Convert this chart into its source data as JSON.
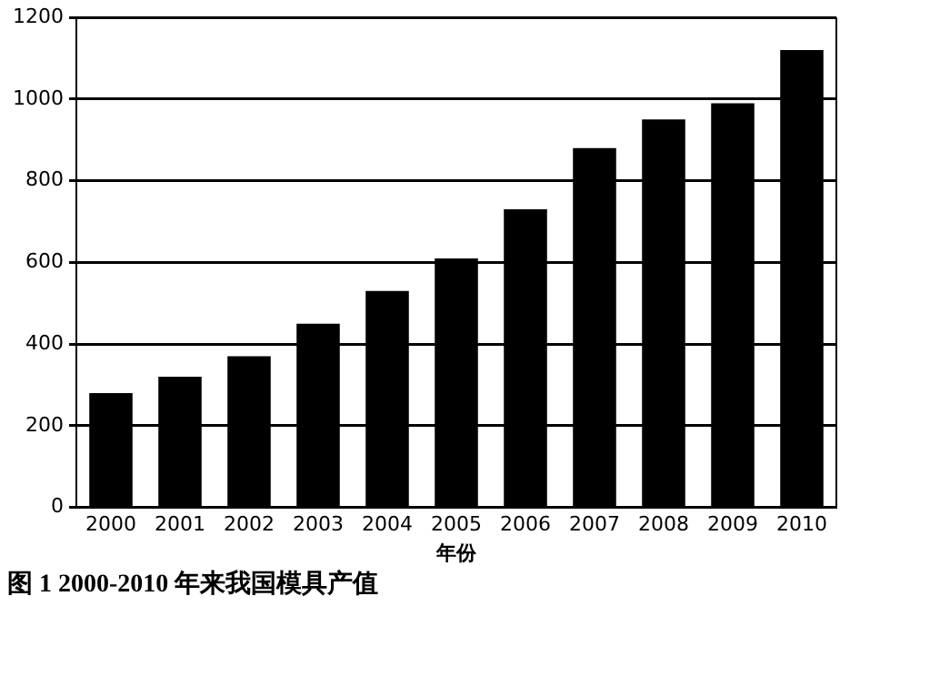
{
  "chart_data": {
    "type": "bar",
    "title": "图 1 2000-2010 年来我国模具产值",
    "xlabel": "年份",
    "categories": [
      "2000",
      "2001",
      "2002",
      "2003",
      "2004",
      "2005",
      "2006",
      "2007",
      "2008",
      "2009",
      "2010"
    ],
    "values": [
      280,
      320,
      370,
      450,
      530,
      610,
      730,
      880,
      950,
      990,
      1120
    ],
    "color": "#000000",
    "ylim": [
      0,
      1200
    ],
    "yticks": [
      0,
      200,
      400,
      600,
      800,
      1000,
      1200
    ],
    "grid": "y",
    "legend": false
  }
}
